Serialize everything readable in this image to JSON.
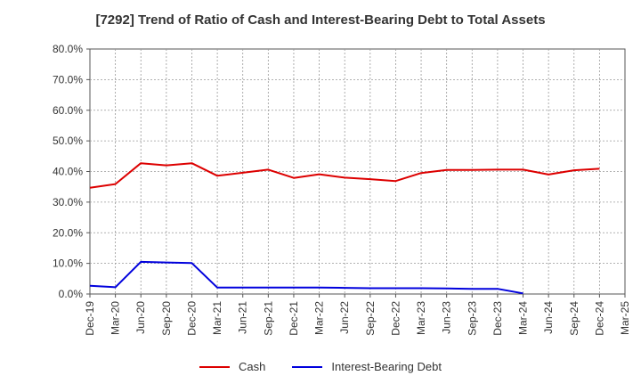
{
  "chart_data": {
    "type": "line",
    "title": "[7292]  Trend of Ratio of Cash and Interest-Bearing Debt to Total Assets",
    "xlabel": "",
    "ylabel": "",
    "categories": [
      "Dec-19",
      "Mar-20",
      "Jun-20",
      "Sep-20",
      "Dec-20",
      "Mar-21",
      "Jun-21",
      "Sep-21",
      "Dec-21",
      "Mar-22",
      "Jun-22",
      "Sep-22",
      "Dec-22",
      "Mar-23",
      "Jun-23",
      "Sep-23",
      "Dec-23",
      "Mar-24",
      "Jun-24",
      "Sep-24",
      "Dec-24",
      "Mar-25"
    ],
    "y_ticks": [
      "0.0%",
      "10.0%",
      "20.0%",
      "30.0%",
      "40.0%",
      "50.0%",
      "60.0%",
      "70.0%",
      "80.0%"
    ],
    "ylim": [
      0,
      80
    ],
    "grid": true,
    "legend_position": "bottom",
    "series": [
      {
        "name": "Cash",
        "color": "#dd0000",
        "values": [
          34.7,
          35.9,
          42.7,
          42.0,
          42.7,
          38.6,
          39.6,
          40.6,
          37.9,
          39.1,
          38.0,
          37.5,
          36.9,
          39.5,
          40.5,
          40.5,
          40.6,
          40.6,
          39.0,
          40.4,
          40.9,
          null
        ]
      },
      {
        "name": "Interest-Bearing Debt",
        "color": "#0000dd",
        "values": [
          2.7,
          2.2,
          10.5,
          10.3,
          10.1,
          2.1,
          2.1,
          2.1,
          2.1,
          2.1,
          2.0,
          1.9,
          1.9,
          1.9,
          1.8,
          1.7,
          1.7,
          0.2,
          null,
          null,
          null,
          null
        ]
      }
    ]
  }
}
